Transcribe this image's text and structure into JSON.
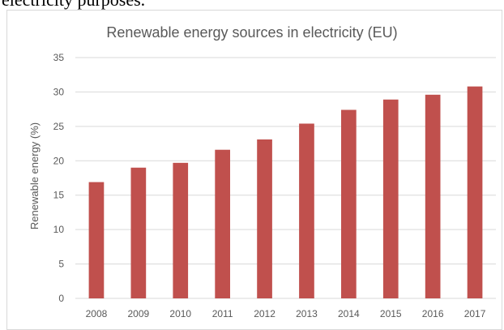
{
  "page": {
    "top_text": "electricity purposes."
  },
  "chart_data": {
    "type": "bar",
    "title": "Renewable energy sources in electricity (EU)",
    "xlabel": "",
    "ylabel": "Renewable energy (%)",
    "categories": [
      "2008",
      "2009",
      "2010",
      "2011",
      "2012",
      "2013",
      "2014",
      "2015",
      "2016",
      "2017"
    ],
    "values": [
      16.9,
      19.0,
      19.7,
      21.6,
      23.1,
      25.4,
      27.4,
      28.9,
      29.6,
      30.8
    ],
    "ylim": [
      0,
      35
    ],
    "yticks": [
      0,
      5,
      10,
      15,
      20,
      25,
      30,
      35
    ],
    "grid": true,
    "bar_color": "#c0504d",
    "grid_color": "#d9d9d9"
  }
}
